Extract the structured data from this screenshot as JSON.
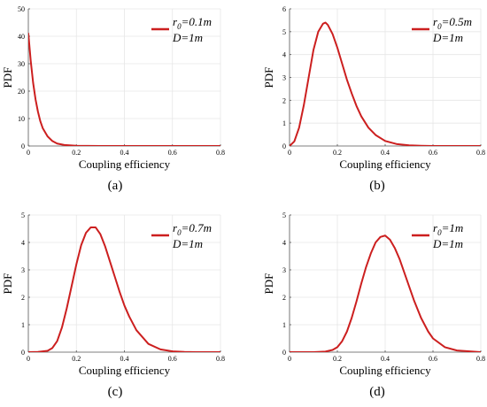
{
  "figure": {
    "style": {
      "line_color": "#cc1f1f",
      "grid_color": "#e6e6e6",
      "axis_color": "#555555"
    },
    "panels": [
      {
        "caption": "(a)",
        "chart_data": {
          "type": "line",
          "xlabel": "Coupling efficiency",
          "ylabel": "PDF",
          "xlim": [
            0,
            0.8
          ],
          "ylim": [
            0,
            50
          ],
          "xticks": [
            0,
            0.2,
            0.4,
            0.6,
            0.8
          ],
          "xtick_labels": [
            "0",
            "0.2",
            "0.4",
            "0.6",
            "0.8"
          ],
          "yticks": [
            0,
            10,
            20,
            30,
            40,
            50
          ],
          "ytick_labels": [
            "0",
            "10",
            "20",
            "30",
            "40",
            "50"
          ],
          "grid": true,
          "legend_position": "top-right",
          "legend": {
            "r0_symbol": "r",
            "r0_sub": "0",
            "r0_value": "=0.1m",
            "D_text": "D=1m"
          },
          "series": [
            {
              "x": [
                0,
                0.01,
                0.02,
                0.03,
                0.04,
                0.05,
                0.06,
                0.08,
                0.1,
                0.12,
                0.15,
                0.2,
                0.3,
                0.4,
                0.5,
                0.6,
                0.7,
                0.8
              ],
              "y": [
                41,
                31,
                23,
                17,
                12.5,
                9,
                6.5,
                3.5,
                1.8,
                0.9,
                0.35,
                0.08,
                0,
                0,
                0,
                0,
                0,
                0
              ]
            }
          ]
        }
      },
      {
        "caption": "(b)",
        "chart_data": {
          "type": "line",
          "xlabel": "Coupling efficiency",
          "ylabel": "PDF",
          "xlim": [
            0,
            0.8
          ],
          "ylim": [
            0,
            6
          ],
          "xticks": [
            0,
            0.2,
            0.4,
            0.6,
            0.8
          ],
          "xtick_labels": [
            "0",
            "0.2",
            "0.4",
            "0.6",
            "0.8"
          ],
          "yticks": [
            0,
            1,
            2,
            3,
            4,
            5,
            6
          ],
          "ytick_labels": [
            "0",
            "1",
            "2",
            "3",
            "4",
            "5",
            "6"
          ],
          "grid": true,
          "legend_position": "top-right",
          "legend": {
            "r0_symbol": "r",
            "r0_sub": "0",
            "r0_value": "=0.5m",
            "D_text": "D=1m"
          },
          "series": [
            {
              "x": [
                0,
                0.02,
                0.04,
                0.06,
                0.08,
                0.1,
                0.12,
                0.14,
                0.15,
                0.16,
                0.18,
                0.2,
                0.22,
                0.24,
                0.26,
                0.28,
                0.3,
                0.33,
                0.36,
                0.4,
                0.45,
                0.5,
                0.55,
                0.6,
                0.7,
                0.8
              ],
              "y": [
                0,
                0.2,
                0.8,
                1.8,
                3.0,
                4.2,
                5.0,
                5.35,
                5.4,
                5.3,
                4.9,
                4.3,
                3.6,
                2.9,
                2.3,
                1.75,
                1.3,
                0.8,
                0.48,
                0.22,
                0.08,
                0.03,
                0.01,
                0,
                0,
                0
              ]
            }
          ]
        }
      },
      {
        "caption": "(c)",
        "chart_data": {
          "type": "line",
          "xlabel": "Coupling efficiency",
          "ylabel": "PDF",
          "xlim": [
            0,
            0.8
          ],
          "ylim": [
            0,
            5
          ],
          "xticks": [
            0,
            0.2,
            0.4,
            0.6,
            0.8
          ],
          "xtick_labels": [
            "0",
            "0.2",
            "0.4",
            "0.6",
            "0.8"
          ],
          "yticks": [
            0,
            1,
            2,
            3,
            4,
            5
          ],
          "ytick_labels": [
            "0",
            "1",
            "2",
            "3",
            "4",
            "5"
          ],
          "grid": true,
          "legend_position": "top-right",
          "legend": {
            "r0_symbol": "r",
            "r0_sub": "0",
            "r0_value": "=0.7m",
            "D_text": "D=1m"
          },
          "series": [
            {
              "x": [
                0,
                0.04,
                0.08,
                0.1,
                0.12,
                0.14,
                0.16,
                0.18,
                0.2,
                0.22,
                0.24,
                0.26,
                0.28,
                0.3,
                0.32,
                0.34,
                0.36,
                0.38,
                0.4,
                0.42,
                0.45,
                0.5,
                0.55,
                0.6,
                0.65,
                0.7,
                0.8
              ],
              "y": [
                0,
                0.01,
                0.05,
                0.15,
                0.4,
                0.9,
                1.6,
                2.4,
                3.2,
                3.9,
                4.35,
                4.55,
                4.55,
                4.3,
                3.85,
                3.3,
                2.75,
                2.2,
                1.7,
                1.3,
                0.8,
                0.3,
                0.1,
                0.03,
                0.01,
                0,
                0
              ]
            }
          ]
        }
      },
      {
        "caption": "(d)",
        "chart_data": {
          "type": "line",
          "xlabel": "Coupling efficiency",
          "ylabel": "PDF",
          "xlim": [
            0,
            0.8
          ],
          "ylim": [
            0,
            5
          ],
          "xticks": [
            0,
            0.2,
            0.4,
            0.6,
            0.8
          ],
          "xtick_labels": [
            "0",
            "0.2",
            "0.4",
            "0.6",
            "0.8"
          ],
          "yticks": [
            0,
            1,
            2,
            3,
            4,
            5
          ],
          "ytick_labels": [
            "0",
            "1",
            "2",
            "3",
            "4",
            "5"
          ],
          "grid": true,
          "legend_position": "top-right",
          "legend": {
            "r0_symbol": "r",
            "r0_sub": "0",
            "r0_value": "=1m",
            "D_text": "D=1m"
          },
          "series": [
            {
              "x": [
                0,
                0.1,
                0.15,
                0.18,
                0.2,
                0.22,
                0.24,
                0.26,
                0.28,
                0.3,
                0.32,
                0.34,
                0.36,
                0.38,
                0.4,
                0.42,
                0.44,
                0.46,
                0.48,
                0.5,
                0.52,
                0.55,
                0.58,
                0.6,
                0.65,
                0.7,
                0.8
              ],
              "y": [
                0,
                0,
                0.02,
                0.08,
                0.18,
                0.4,
                0.75,
                1.25,
                1.85,
                2.5,
                3.1,
                3.6,
                4.0,
                4.2,
                4.25,
                4.1,
                3.8,
                3.4,
                2.9,
                2.4,
                1.9,
                1.25,
                0.75,
                0.5,
                0.18,
                0.06,
                0
              ]
            }
          ]
        }
      }
    ]
  }
}
